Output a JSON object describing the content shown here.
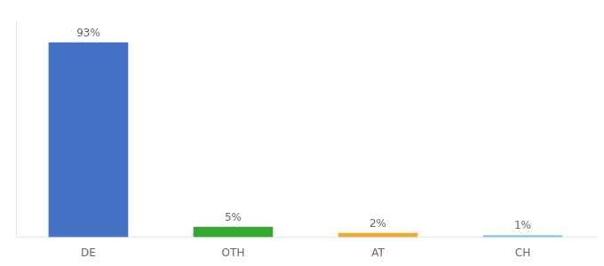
{
  "chart_data": {
    "type": "bar",
    "categories": [
      "DE",
      "OTH",
      "AT",
      "CH"
    ],
    "values": [
      93,
      5,
      2,
      1
    ],
    "value_labels": [
      "93%",
      "5%",
      "2%",
      "1%"
    ],
    "data_labels": true,
    "colors": [
      "#4472C4",
      "#36A832",
      "#F0A830",
      "#7EC8E3"
    ],
    "ylim": [
      0,
      103
    ],
    "grid": false,
    "tick_labels": "x"
  }
}
